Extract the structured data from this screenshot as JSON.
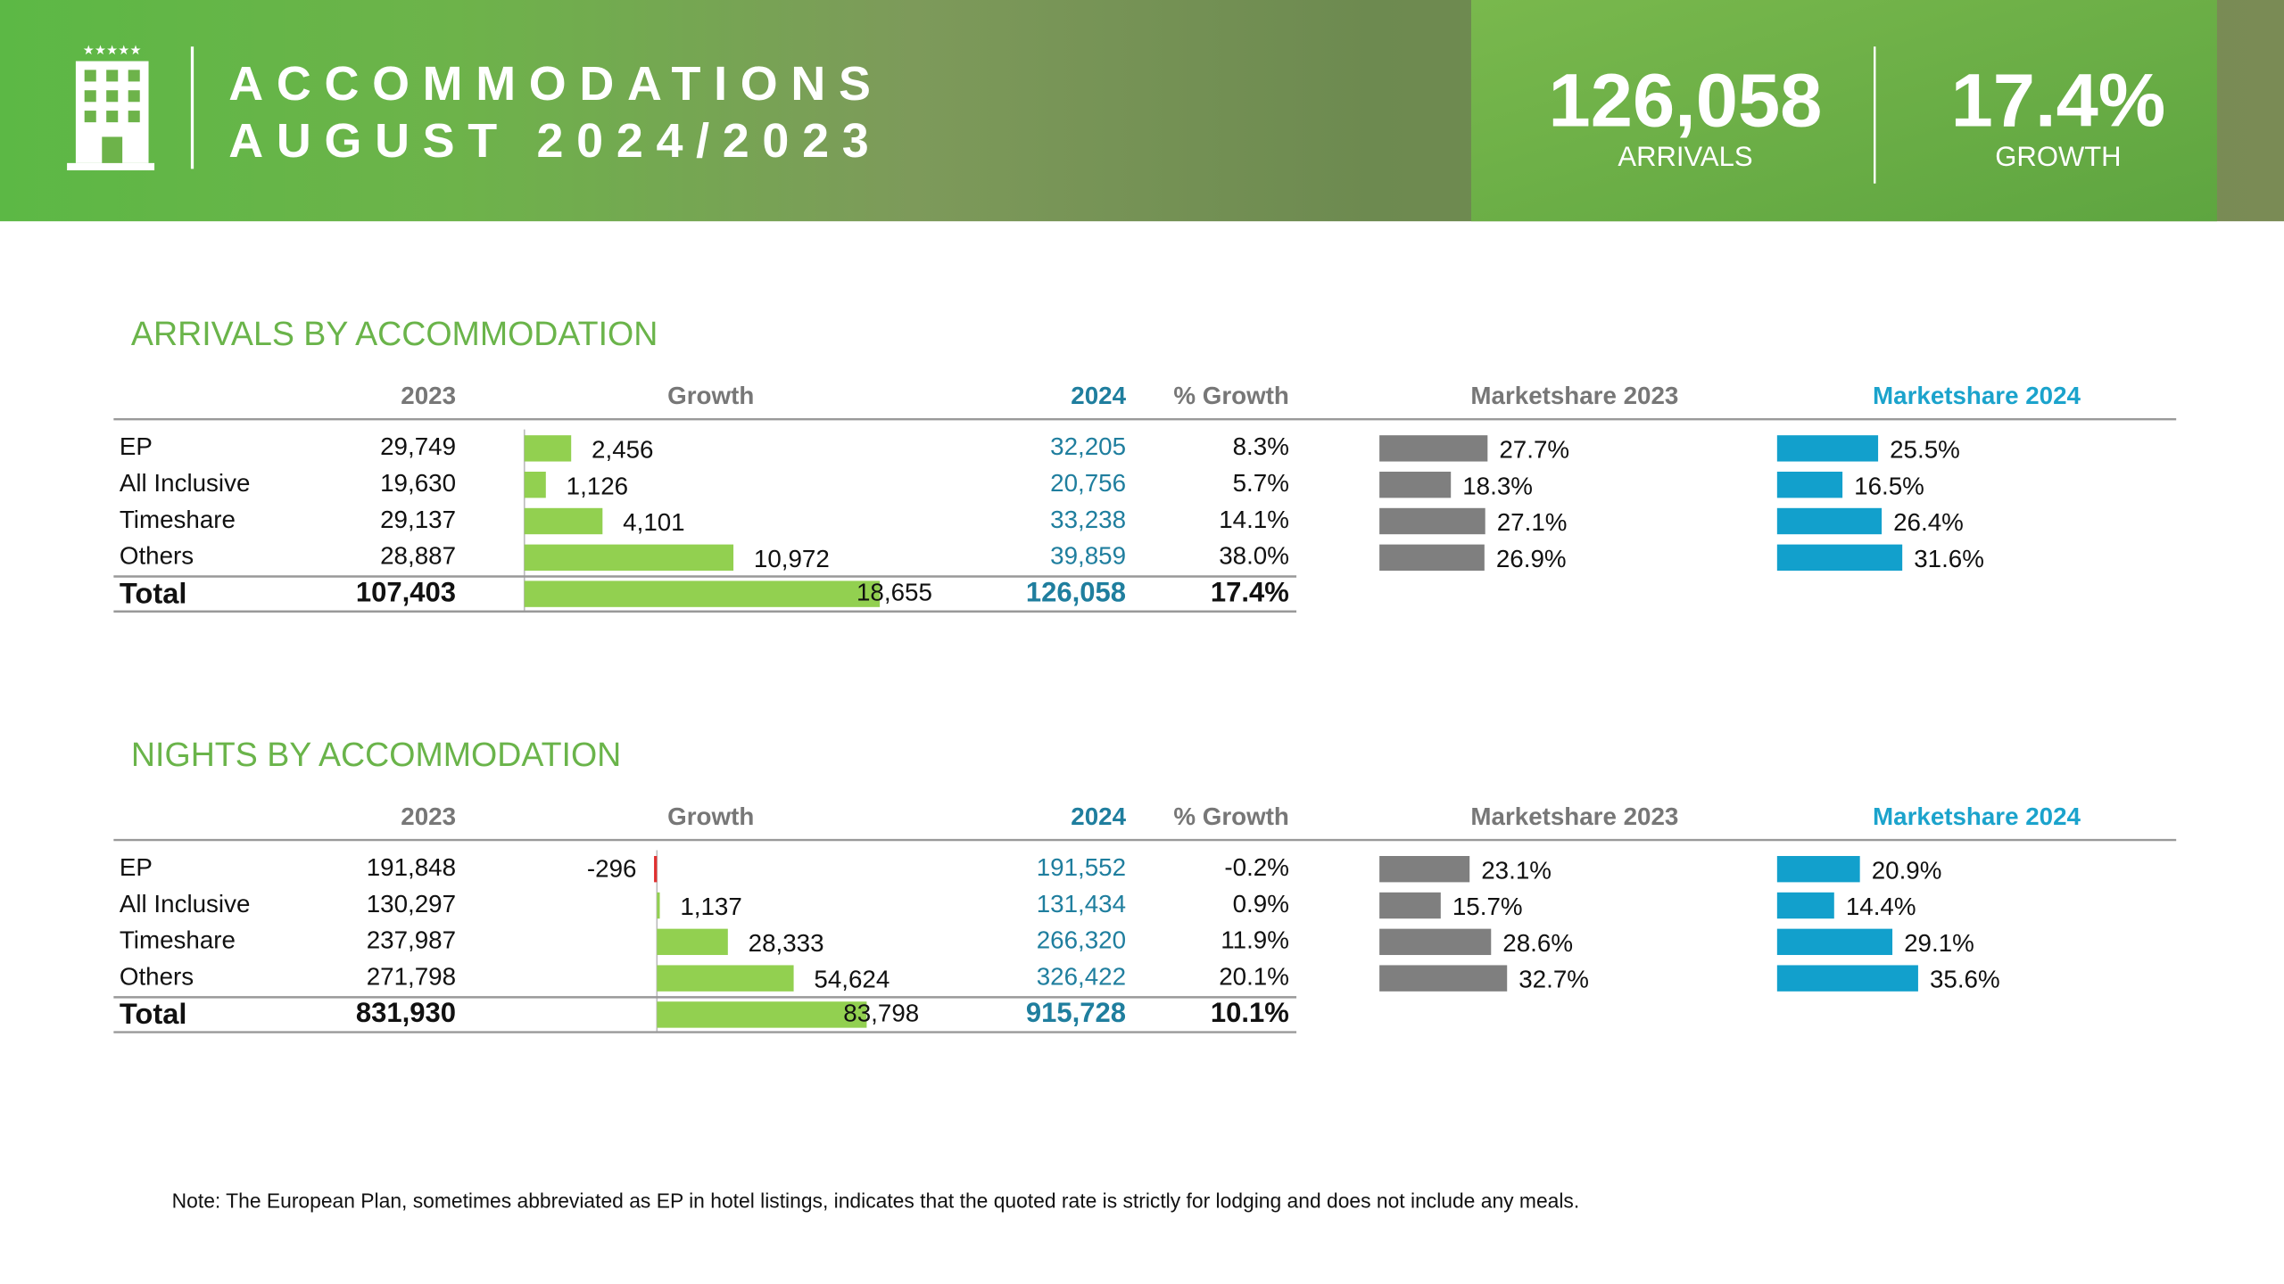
{
  "header": {
    "title_lines": [
      "ACCOMMODATIONS",
      "AUGUST 2024/2023"
    ],
    "kpis": [
      {
        "value": "126,058",
        "label": "ARRIVALS"
      },
      {
        "value": "17.4%",
        "label": "GROWTH"
      }
    ]
  },
  "sections": [
    {
      "title": "ARRIVALS BY ACCOMMODATION",
      "columns": [
        "2023",
        "Growth",
        "2024",
        "% Growth",
        "Marketshare 2023",
        "Marketshare 2024"
      ],
      "rows": [
        {
          "name": "EP",
          "v2023": "29,749",
          "growth": 2456,
          "growth_label": "2,456",
          "v2024": "32,205",
          "pct_growth": "8.3%",
          "share_2023": 27.7,
          "share_2023_label": "27.7%",
          "share_2024": 25.5,
          "share_2024_label": "25.5%"
        },
        {
          "name": "All Inclusive",
          "v2023": "19,630",
          "growth": 1126,
          "growth_label": "1,126",
          "v2024": "20,756",
          "pct_growth": "5.7%",
          "share_2023": 18.3,
          "share_2023_label": "18.3%",
          "share_2024": 16.5,
          "share_2024_label": "16.5%"
        },
        {
          "name": "Timeshare",
          "v2023": "29,137",
          "growth": 4101,
          "growth_label": "4,101",
          "v2024": "33,238",
          "pct_growth": "14.1%",
          "share_2023": 27.1,
          "share_2023_label": "27.1%",
          "share_2024": 26.4,
          "share_2024_label": "26.4%"
        },
        {
          "name": "Others",
          "v2023": "28,887",
          "growth": 10972,
          "growth_label": "10,972",
          "v2024": "39,859",
          "pct_growth": "38.0%",
          "share_2023": 26.9,
          "share_2023_label": "26.9%",
          "share_2024": 31.6,
          "share_2024_label": "31.6%"
        }
      ],
      "total": {
        "name": "Total",
        "v2023": "107,403",
        "growth": 18655,
        "growth_label": "18,655",
        "v2024": "126,058",
        "pct_growth": "17.4%"
      }
    },
    {
      "title": "NIGHTS BY ACCOMMODATION",
      "columns": [
        "2023",
        "Growth",
        "2024",
        "% Growth",
        "Marketshare 2023",
        "Marketshare 2024"
      ],
      "rows": [
        {
          "name": "EP",
          "v2023": "191,848",
          "growth": -296,
          "growth_label": "-296",
          "v2024": "191,552",
          "pct_growth": "-0.2%",
          "share_2023": 23.1,
          "share_2023_label": "23.1%",
          "share_2024": 20.9,
          "share_2024_label": "20.9%"
        },
        {
          "name": "All Inclusive",
          "v2023": "130,297",
          "growth": 1137,
          "growth_label": "1,137",
          "v2024": "131,434",
          "pct_growth": "0.9%",
          "share_2023": 15.7,
          "share_2023_label": "15.7%",
          "share_2024": 14.4,
          "share_2024_label": "14.4%"
        },
        {
          "name": "Timeshare",
          "v2023": "237,987",
          "growth": 28333,
          "growth_label": "28,333",
          "v2024": "266,320",
          "pct_growth": "11.9%",
          "share_2023": 28.6,
          "share_2023_label": "28.6%",
          "share_2024": 29.1,
          "share_2024_label": "29.1%"
        },
        {
          "name": "Others",
          "v2023": "271,798",
          "growth": 54624,
          "growth_label": "54,624",
          "v2024": "326,422",
          "pct_growth": "20.1%",
          "share_2023": 32.7,
          "share_2023_label": "32.7%",
          "share_2024": 35.6,
          "share_2024_label": "35.6%"
        }
      ],
      "total": {
        "name": "Total",
        "v2023": "831,930",
        "growth": 83798,
        "growth_label": "83,798",
        "v2024": "915,728",
        "pct_growth": "10.1%"
      }
    }
  ],
  "note": "Note: The European Plan, sometimes abbreviated as EP in hotel listings, indicates that the quoted rate is strictly for lodging and does not include any meals."
}
